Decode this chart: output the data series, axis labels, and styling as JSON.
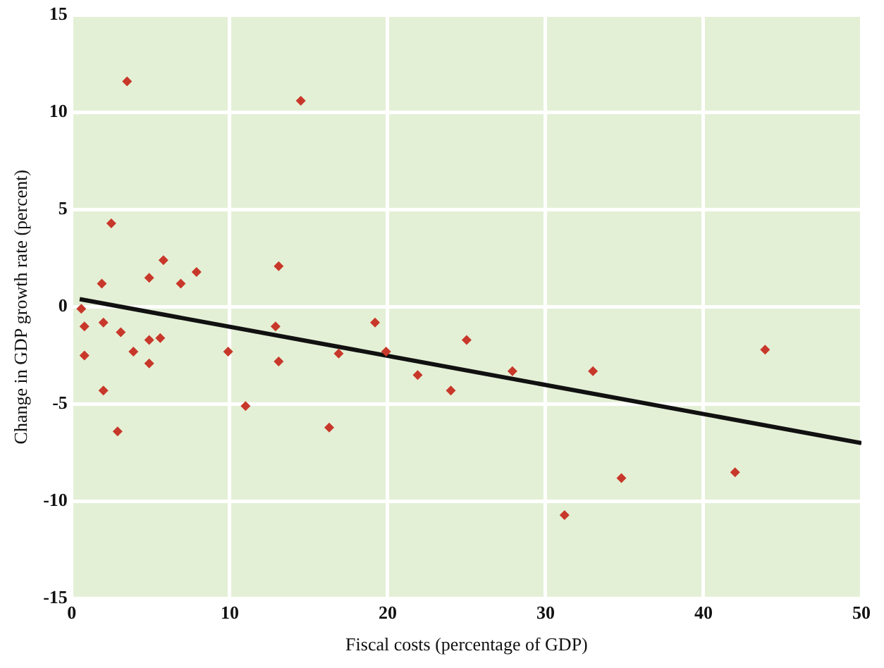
{
  "chart_data": {
    "type": "scatter",
    "xlabel": "Fiscal costs (percentage of GDP)",
    "ylabel": "Change in GDP growth rate (percent)",
    "xlim": [
      0,
      50
    ],
    "xticks": [
      0,
      10,
      20,
      30,
      40,
      50
    ],
    "ylim": [
      -15,
      15
    ],
    "yticks": [
      -15,
      -10,
      -5,
      0,
      5,
      10,
      15
    ],
    "grid": true,
    "legend": false,
    "marker": "diamond",
    "series": [
      {
        "color": "#c8382a",
        "x": [
          3.5,
          14.5,
          2.5,
          1.9,
          4.9,
          5.8,
          6.9,
          7.9,
          13.1,
          0.6,
          0.8,
          2.0,
          3.1,
          0.8,
          3.9,
          4.9,
          5.6,
          4.9,
          2.0,
          2.9,
          9.9,
          12.9,
          13.1,
          11.0,
          16.9,
          16.3,
          19.2,
          19.9,
          25.0,
          21.9,
          24.0,
          27.9,
          33.0,
          43.9,
          34.8,
          42.0,
          31.2
        ],
        "values": [
          11.6,
          10.6,
          4.3,
          1.2,
          1.5,
          2.4,
          1.2,
          1.8,
          2.1,
          -0.1,
          -1.0,
          -0.8,
          -1.3,
          -2.5,
          -2.3,
          -1.7,
          -1.6,
          -2.9,
          -4.3,
          -6.4,
          -2.3,
          -1.0,
          -2.8,
          -5.1,
          -2.4,
          -6.2,
          -0.8,
          -2.3,
          -1.7,
          -3.5,
          -4.3,
          -3.3,
          -3.3,
          -2.2,
          -8.8,
          -8.5,
          -10.7
        ]
      },
      {
        "type": "line",
        "color": "#111111",
        "x": [
          0.5,
          50
        ],
        "values": [
          0.4,
          -7.0
        ],
        "marker": "none"
      }
    ]
  }
}
